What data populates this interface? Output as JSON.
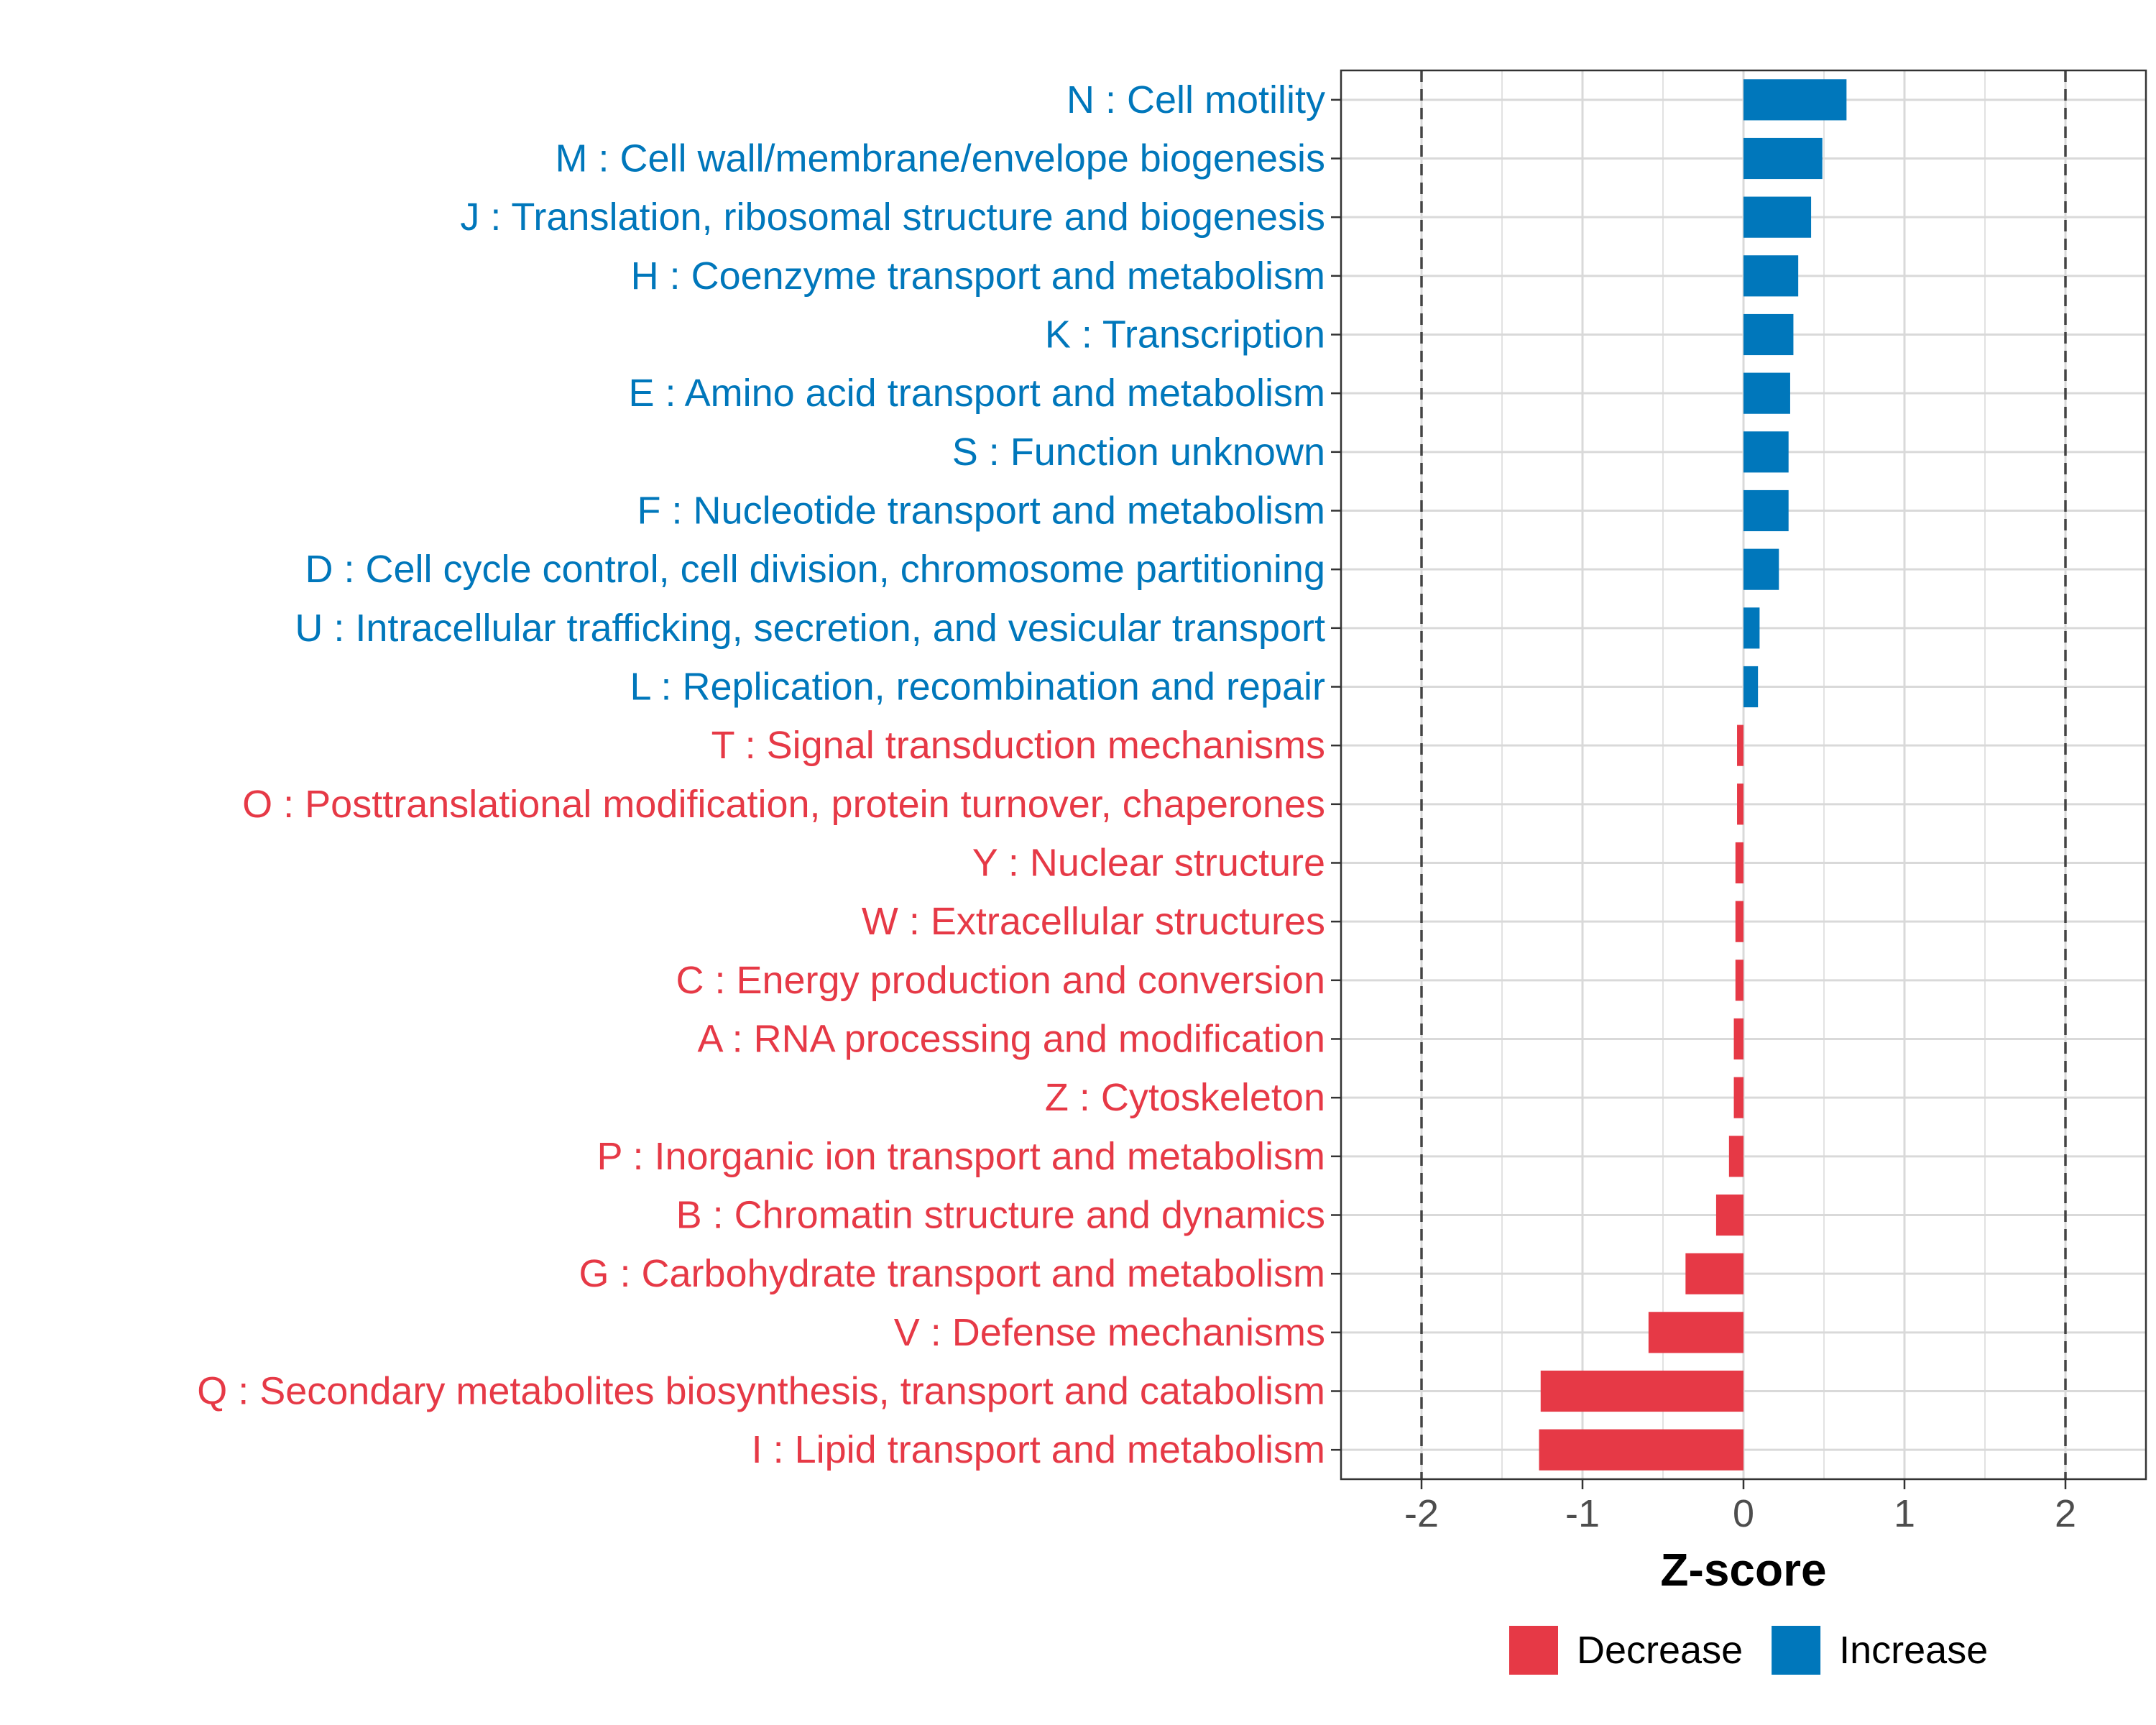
{
  "chart_data": {
    "type": "bar",
    "orientation": "horizontal",
    "title": "",
    "xlabel": "Z-score",
    "ylabel": "",
    "xlim": [
      -2.5,
      2.5
    ],
    "xticks": [
      -2,
      -1,
      0,
      1,
      2
    ],
    "xtick_labels": [
      "-2",
      "-1",
      "0",
      "1",
      "2"
    ],
    "reference_lines": [
      -2,
      2
    ],
    "grid": true,
    "legend": {
      "position": "bottom",
      "entries": [
        "Decrease",
        "Increase"
      ]
    },
    "colors": {
      "Decrease": "#E63946",
      "Increase": "#0077BB"
    },
    "bars": [
      {
        "label": "N : Cell motility",
        "value": 0.64,
        "group": "Increase"
      },
      {
        "label": "M : Cell wall/membrane/envelope biogenesis",
        "value": 0.49,
        "group": "Increase"
      },
      {
        "label": "J : Translation, ribosomal structure and biogenesis",
        "value": 0.42,
        "group": "Increase"
      },
      {
        "label": "H : Coenzyme transport and metabolism",
        "value": 0.34,
        "group": "Increase"
      },
      {
        "label": "K : Transcription",
        "value": 0.31,
        "group": "Increase"
      },
      {
        "label": "E : Amino acid transport and metabolism",
        "value": 0.29,
        "group": "Increase"
      },
      {
        "label": "S : Function unknown",
        "value": 0.28,
        "group": "Increase"
      },
      {
        "label": "F : Nucleotide transport and metabolism",
        "value": 0.28,
        "group": "Increase"
      },
      {
        "label": "D : Cell cycle control, cell division, chromosome partitioning",
        "value": 0.22,
        "group": "Increase"
      },
      {
        "label": "U : Intracellular trafficking, secretion, and vesicular transport",
        "value": 0.1,
        "group": "Increase"
      },
      {
        "label": "L : Replication, recombination and repair",
        "value": 0.09,
        "group": "Increase"
      },
      {
        "label": "T : Signal transduction mechanisms",
        "value": -0.04,
        "group": "Decrease"
      },
      {
        "label": "O : Posttranslational modification, protein turnover, chaperones",
        "value": -0.04,
        "group": "Decrease"
      },
      {
        "label": "Y : Nuclear structure",
        "value": -0.05,
        "group": "Decrease"
      },
      {
        "label": "W : Extracellular structures",
        "value": -0.05,
        "group": "Decrease"
      },
      {
        "label": "C : Energy production and conversion",
        "value": -0.05,
        "group": "Decrease"
      },
      {
        "label": "A : RNA processing and modification",
        "value": -0.06,
        "group": "Decrease"
      },
      {
        "label": "Z : Cytoskeleton",
        "value": -0.06,
        "group": "Decrease"
      },
      {
        "label": "P : Inorganic ion transport and metabolism",
        "value": -0.09,
        "group": "Decrease"
      },
      {
        "label": "B : Chromatin structure and dynamics",
        "value": -0.17,
        "group": "Decrease"
      },
      {
        "label": "G : Carbohydrate transport and metabolism",
        "value": -0.36,
        "group": "Decrease"
      },
      {
        "label": "V : Defense mechanisms",
        "value": -0.59,
        "group": "Decrease"
      },
      {
        "label": "Q : Secondary metabolites biosynthesis, transport and catabolism",
        "value": -1.26,
        "group": "Decrease"
      },
      {
        "label": "I : Lipid transport and metabolism",
        "value": -1.27,
        "group": "Decrease"
      }
    ]
  }
}
